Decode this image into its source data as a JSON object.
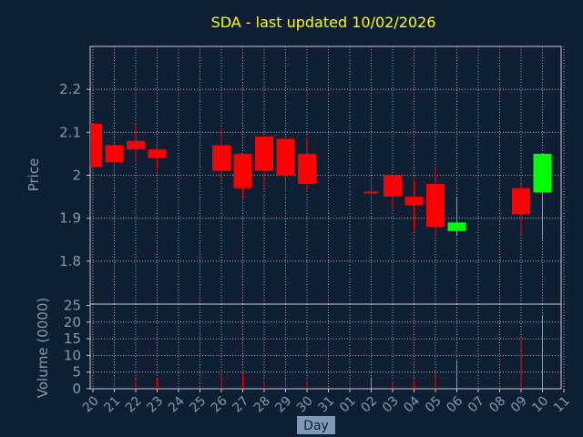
{
  "chart_data": {
    "type": "candlestick",
    "title": "SDA - last updated 10/02/2026",
    "xlabel": "Day",
    "categories": [
      "20",
      "21",
      "22",
      "23",
      "24",
      "25",
      "26",
      "27",
      "28",
      "29",
      "30",
      "31",
      "01",
      "02",
      "03",
      "04",
      "05",
      "06",
      "07",
      "08",
      "09",
      "10",
      "11"
    ],
    "price": {
      "ylabel": "Price",
      "ylim": [
        1.7,
        2.3
      ],
      "yticks": [
        "1.8",
        "1.9",
        "2",
        "2.1",
        "2.2"
      ],
      "candles": [
        {
          "day": "20",
          "open": 2.12,
          "high": 2.12,
          "low": 2.02,
          "close": 2.02
        },
        {
          "day": "21",
          "open": 2.07,
          "high": 2.07,
          "low": 2.0,
          "close": 2.03
        },
        {
          "day": "22",
          "open": 2.08,
          "high": 2.12,
          "low": 2.03,
          "close": 2.06
        },
        {
          "day": "23",
          "open": 2.06,
          "high": 2.06,
          "low": 2.01,
          "close": 2.04
        },
        {
          "day": "26",
          "open": 2.07,
          "high": 2.11,
          "low": 1.99,
          "close": 2.01
        },
        {
          "day": "27",
          "open": 2.05,
          "high": 2.05,
          "low": 1.95,
          "close": 1.97
        },
        {
          "day": "28",
          "open": 2.09,
          "high": 2.09,
          "low": 1.97,
          "close": 2.01
        },
        {
          "day": "29",
          "open": 2.085,
          "high": 2.085,
          "low": 1.96,
          "close": 2.0
        },
        {
          "day": "30",
          "open": 2.05,
          "high": 2.09,
          "low": 1.96,
          "close": 1.98
        },
        {
          "day": "02",
          "open": 1.96,
          "high": 1.99,
          "low": 1.955,
          "close": 1.96
        },
        {
          "day": "03",
          "open": 2.0,
          "high": 2.0,
          "low": 1.92,
          "close": 1.95
        },
        {
          "day": "04",
          "open": 1.95,
          "high": 1.99,
          "low": 1.87,
          "close": 1.93
        },
        {
          "day": "05",
          "open": 1.98,
          "high": 2.02,
          "low": 1.86,
          "close": 1.88
        },
        {
          "day": "06",
          "open": 1.87,
          "high": 1.95,
          "low": 1.86,
          "close": 1.89
        },
        {
          "day": "09",
          "open": 1.97,
          "high": 1.98,
          "low": 1.86,
          "close": 1.91
        },
        {
          "day": "10",
          "open": 1.96,
          "high": 2.05,
          "low": 1.85,
          "close": 2.05
        }
      ]
    },
    "volume": {
      "ylabel": "Volume (0000)",
      "ylim": [
        0,
        25
      ],
      "yticks": [
        "0",
        "5",
        "10",
        "15",
        "20",
        "25"
      ],
      "bars": [
        {
          "day": "21",
          "value": 3.5,
          "color": "red"
        },
        {
          "day": "22",
          "value": 3,
          "color": "red"
        },
        {
          "day": "23",
          "value": 3.2,
          "color": "red"
        },
        {
          "day": "26",
          "value": 5,
          "color": "red"
        },
        {
          "day": "27",
          "value": 4.5,
          "color": "red"
        },
        {
          "day": "28",
          "value": 2.5,
          "color": "red"
        },
        {
          "day": "29",
          "value": 3,
          "color": "red"
        },
        {
          "day": "30",
          "value": 2.5,
          "color": "red"
        },
        {
          "day": "02",
          "value": 3.5,
          "color": "green"
        },
        {
          "day": "03",
          "value": 2.5,
          "color": "red"
        },
        {
          "day": "04",
          "value": 2.5,
          "color": "red"
        },
        {
          "day": "05",
          "value": 4.5,
          "color": "red"
        },
        {
          "day": "06",
          "value": 8.5,
          "color": "green"
        },
        {
          "day": "09",
          "value": 15,
          "color": "red"
        },
        {
          "day": "10",
          "value": 22,
          "color": "green"
        }
      ]
    },
    "grid": true,
    "colors": {
      "background": "#0f1f33",
      "up": "#00ff00",
      "down": "#ff0000",
      "grid": "#c8c8c8",
      "axis": "#c8c8c8",
      "text": "#7f9ab6",
      "title": "#ffff00"
    }
  }
}
